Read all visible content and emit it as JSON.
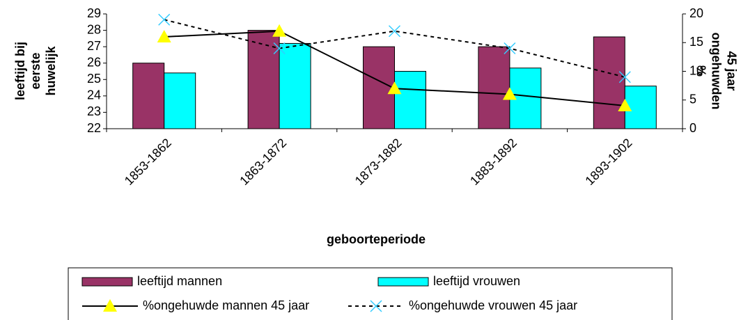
{
  "chart_data": {
    "type": "bar",
    "x_label": "geboorteperiode",
    "y_label": [
      "leeftijd bij",
      "eerste",
      "huwelijk"
    ],
    "y2_label": [
      "%",
      "ongehuwden",
      "45 jaar"
    ],
    "categories": [
      "1853-1862",
      "1863-1872",
      "1873-1882",
      "1883-1892",
      "1893-1902"
    ],
    "series": [
      {
        "name": "leeftijd mannen",
        "type": "bar",
        "color": "#993366",
        "values": [
          26,
          28,
          27,
          27,
          27.6
        ]
      },
      {
        "name": "leeftijd vrouwen",
        "type": "bar",
        "color": "#00ffff",
        "values": [
          25.4,
          27.2,
          25.5,
          25.7,
          24.6
        ]
      },
      {
        "name": "%ongehuwde mannen 45 jaar",
        "type": "line",
        "axis": "y2",
        "color": "#000000",
        "marker": "triangle",
        "marker_color": "#ffff00",
        "dashed": false,
        "values": [
          16,
          17,
          7,
          6,
          4
        ]
      },
      {
        "name": "%ongehuwde vrouwen 45 jaar",
        "type": "line",
        "axis": "y2",
        "color": "#000000",
        "marker": "x",
        "marker_color": "#33ccff",
        "dashed": true,
        "values": [
          19,
          14,
          17,
          14,
          9
        ]
      }
    ],
    "ylim": [
      22,
      29
    ],
    "yticks": [
      22,
      23,
      24,
      25,
      26,
      27,
      28,
      29
    ],
    "y2lim": [
      0,
      20
    ],
    "y2ticks": [
      0,
      5,
      10,
      15,
      20
    ],
    "grid": false,
    "legend": "bottom"
  }
}
